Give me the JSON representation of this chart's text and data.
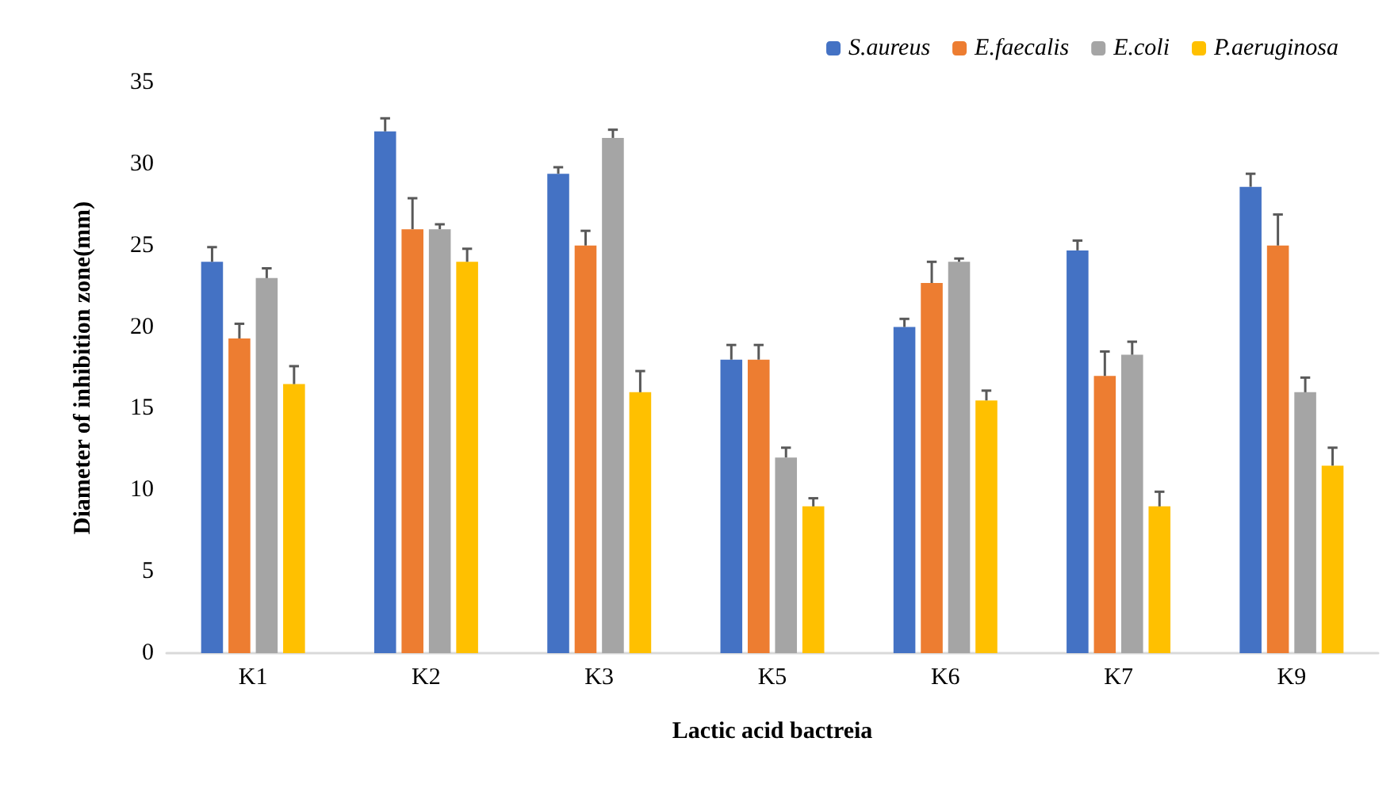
{
  "chart_data": {
    "type": "bar",
    "xlabel": "Lactic acid bactreia",
    "ylabel": "Diameter of inhibition zone(mm)",
    "categories": [
      "K1",
      "K2",
      "K3",
      "K5",
      "K6",
      "K7",
      "K9"
    ],
    "ylim": [
      0,
      35
    ],
    "yticks": [
      0,
      5,
      10,
      15,
      20,
      25,
      30,
      35
    ],
    "grid": false,
    "legend": "top right",
    "series": [
      {
        "name": "S.aureus",
        "color": "#4472c4",
        "values": [
          24,
          32,
          29.4,
          18,
          20,
          24.7,
          28.6
        ],
        "errors": [
          [
            24,
            24.9
          ],
          [
            32,
            32.8
          ],
          [
            29.4,
            29.8
          ],
          [
            18,
            18.9
          ],
          [
            20,
            20.5
          ],
          [
            24.7,
            25.3
          ],
          [
            28.6,
            29.4
          ]
        ]
      },
      {
        "name": "E.faecalis",
        "color": "#ed7d31",
        "values": [
          19.3,
          26,
          25,
          18,
          22.7,
          17,
          25
        ],
        "errors": [
          [
            19.3,
            20.2
          ],
          [
            26,
            27.9
          ],
          [
            25,
            25.9
          ],
          [
            18,
            18.9
          ],
          [
            22.7,
            24
          ],
          [
            17,
            18.5
          ],
          [
            25,
            26.9
          ]
        ]
      },
      {
        "name": "E.coli",
        "color": "#a5a5a5",
        "values": [
          23,
          26,
          31.6,
          12,
          24,
          18.3,
          16
        ],
        "errors": [
          [
            23,
            23.6
          ],
          [
            26,
            26.3
          ],
          [
            31.6,
            32.1
          ],
          [
            12,
            12.6
          ],
          [
            24,
            24.2
          ],
          [
            18.3,
            19.1
          ],
          [
            16,
            16.9
          ]
        ]
      },
      {
        "name": "P.aeruginosa",
        "color": "#ffc000",
        "values": [
          16.5,
          24,
          16,
          9,
          15.5,
          9,
          11.5
        ],
        "errors": [
          [
            16.5,
            17.6
          ],
          [
            24,
            24.8
          ],
          [
            16,
            17.3
          ],
          [
            9,
            9.5
          ],
          [
            15.5,
            16.1
          ],
          [
            9,
            9.9
          ],
          [
            11.5,
            12.6
          ]
        ]
      }
    ]
  }
}
